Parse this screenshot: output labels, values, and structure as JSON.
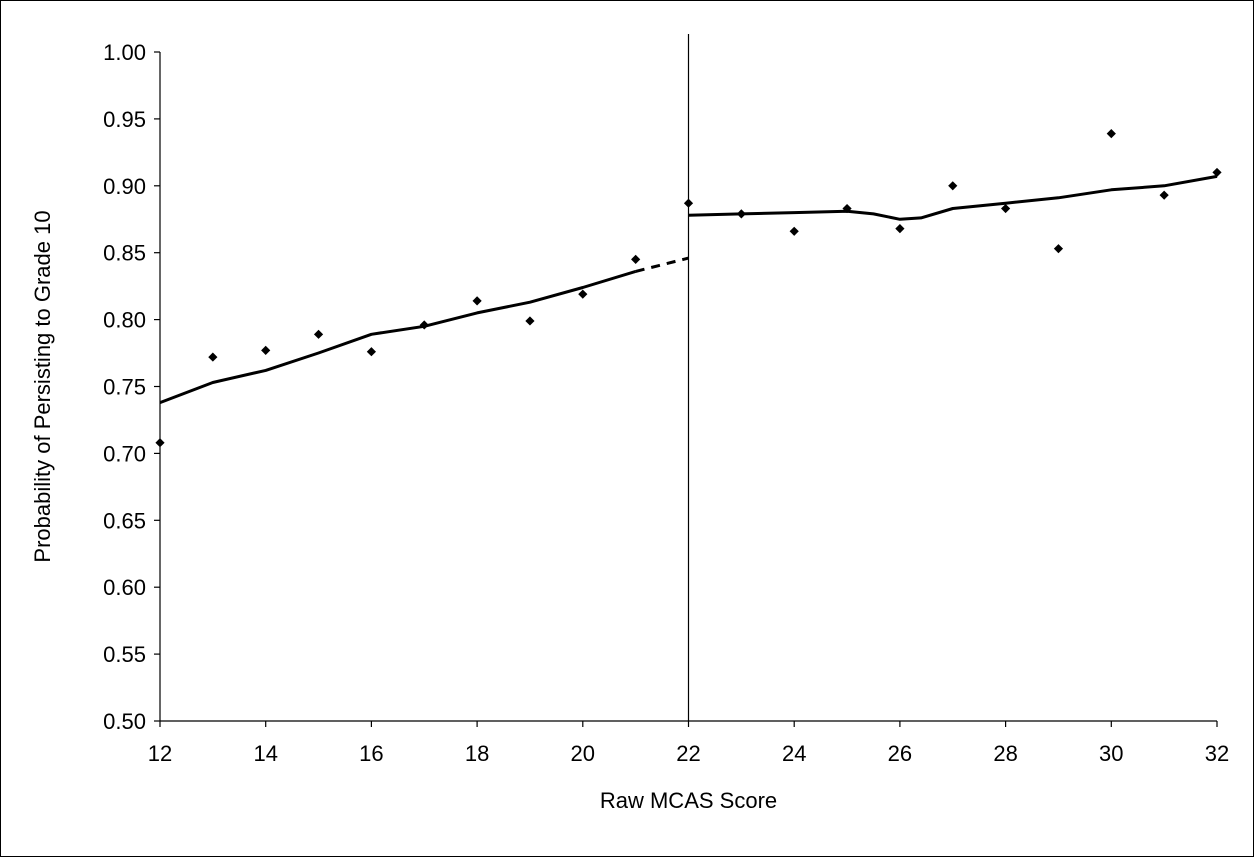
{
  "chart_data": {
    "type": "scatter",
    "title": "",
    "xlabel": "Raw MCAS Score",
    "ylabel": "Probability of Persisting to Grade 10",
    "xlim": [
      12,
      32
    ],
    "ylim": [
      0.5,
      1.0
    ],
    "x_ticks": [
      "12",
      "14",
      "16",
      "18",
      "20",
      "22",
      "24",
      "26",
      "28",
      "30",
      "32"
    ],
    "y_ticks": [
      "0.50",
      "0.55",
      "0.60",
      "0.65",
      "0.70",
      "0.75",
      "0.80",
      "0.85",
      "0.90",
      "0.95",
      "1.00"
    ],
    "cutoff_x": 22,
    "grid": false,
    "legend": "none",
    "points": [
      {
        "x": 12,
        "y": 0.708
      },
      {
        "x": 13,
        "y": 0.772
      },
      {
        "x": 14,
        "y": 0.777
      },
      {
        "x": 15,
        "y": 0.789
      },
      {
        "x": 16,
        "y": 0.776
      },
      {
        "x": 17,
        "y": 0.796
      },
      {
        "x": 18,
        "y": 0.814
      },
      {
        "x": 19,
        "y": 0.799
      },
      {
        "x": 20,
        "y": 0.819
      },
      {
        "x": 21,
        "y": 0.845
      },
      {
        "x": 22,
        "y": 0.887
      },
      {
        "x": 23,
        "y": 0.879
      },
      {
        "x": 24,
        "y": 0.866
      },
      {
        "x": 25,
        "y": 0.883
      },
      {
        "x": 26,
        "y": 0.868
      },
      {
        "x": 27,
        "y": 0.9
      },
      {
        "x": 28,
        "y": 0.883
      },
      {
        "x": 29,
        "y": 0.853
      },
      {
        "x": 30,
        "y": 0.939
      },
      {
        "x": 31,
        "y": 0.893
      },
      {
        "x": 32,
        "y": 0.91
      }
    ],
    "fit_left": [
      {
        "x": 12,
        "y": 0.738
      },
      {
        "x": 13,
        "y": 0.753
      },
      {
        "x": 14,
        "y": 0.762
      },
      {
        "x": 15,
        "y": 0.775
      },
      {
        "x": 16,
        "y": 0.789
      },
      {
        "x": 17,
        "y": 0.795
      },
      {
        "x": 18,
        "y": 0.805
      },
      {
        "x": 19,
        "y": 0.813
      },
      {
        "x": 20,
        "y": 0.824
      },
      {
        "x": 21,
        "y": 0.836
      }
    ],
    "fit_left_extension": [
      {
        "x": 21,
        "y": 0.836
      },
      {
        "x": 22,
        "y": 0.846
      }
    ],
    "fit_right": [
      {
        "x": 22,
        "y": 0.878
      },
      {
        "x": 23,
        "y": 0.879
      },
      {
        "x": 24,
        "y": 0.88
      },
      {
        "x": 25,
        "y": 0.881
      },
      {
        "x": 25.5,
        "y": 0.879
      },
      {
        "x": 26,
        "y": 0.875
      },
      {
        "x": 26.4,
        "y": 0.876
      },
      {
        "x": 27,
        "y": 0.883
      },
      {
        "x": 28,
        "y": 0.887
      },
      {
        "x": 29,
        "y": 0.891
      },
      {
        "x": 30,
        "y": 0.897
      },
      {
        "x": 31,
        "y": 0.9
      },
      {
        "x": 32,
        "y": 0.907
      }
    ]
  }
}
